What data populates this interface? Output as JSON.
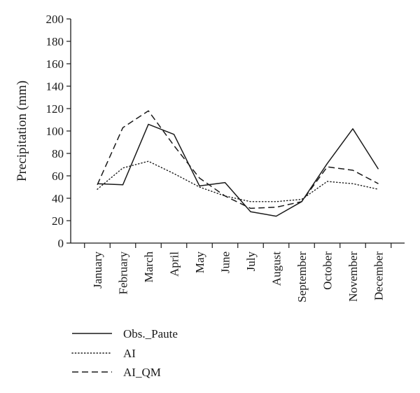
{
  "chart_data": {
    "type": "line",
    "categories": [
      "January",
      "February",
      "March",
      "April",
      "May",
      "June",
      "July",
      "August",
      "September",
      "October",
      "November",
      "December"
    ],
    "series": [
      {
        "name": "Obs._Paute",
        "style": "solid",
        "values": [
          53,
          52,
          106,
          97,
          51,
          54,
          28,
          24,
          37,
          71,
          102,
          66
        ]
      },
      {
        "name": "AI",
        "style": "dotted",
        "values": [
          48,
          67,
          73,
          62,
          50,
          42,
          37,
          37,
          39,
          55,
          53,
          48
        ]
      },
      {
        "name": "AI_QM",
        "style": "dashed",
        "values": [
          52,
          103,
          118,
          87,
          58,
          42,
          31,
          32,
          37,
          68,
          65,
          53
        ]
      }
    ],
    "title": "",
    "xlabel": "",
    "ylabel": "Precipitation (mm)",
    "ylim": [
      0,
      200
    ],
    "yticks": [
      0,
      20,
      40,
      60,
      80,
      100,
      120,
      140,
      160,
      180,
      200
    ],
    "grid": false,
    "legend_position": "bottom-left",
    "line_color": "#1a1a1a"
  }
}
